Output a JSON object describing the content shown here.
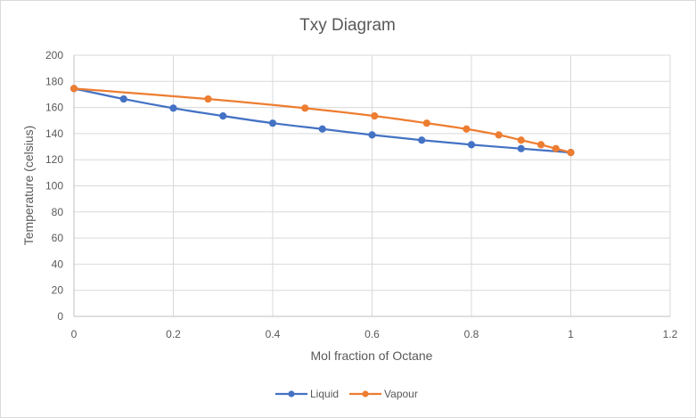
{
  "chart_data": {
    "type": "scatter",
    "title": "Txy Diagram",
    "xlabel": "Mol fraction of Octane",
    "ylabel": "Temperature (celsius)",
    "xlim": [
      0,
      1.2
    ],
    "ylim": [
      0,
      200
    ],
    "xticks": [
      0,
      0.2,
      0.4,
      0.6,
      0.8,
      1,
      1.2
    ],
    "yticks": [
      0,
      20,
      40,
      60,
      80,
      100,
      120,
      140,
      160,
      180,
      200
    ],
    "xtick_labels": [
      "0",
      "0.2",
      "0.4",
      "0.6",
      "0.8",
      "1",
      "1.2"
    ],
    "ytick_labels": [
      "0",
      "20",
      "40",
      "60",
      "80",
      "100",
      "120",
      "140",
      "160",
      "180",
      "200"
    ],
    "grid": true,
    "legend_position": "bottom",
    "series": [
      {
        "name": "Liquid",
        "color": "#4472c4",
        "x": [
          0,
          0.1,
          0.2,
          0.3,
          0.4,
          0.5,
          0.6,
          0.7,
          0.8,
          0.9,
          1.0
        ],
        "y": [
          174.5,
          166.5,
          159.5,
          153.5,
          148,
          143.5,
          139,
          135,
          131.5,
          128.5,
          125.5
        ]
      },
      {
        "name": "Vapour",
        "color": "#ed7d31",
        "x": [
          0,
          0.27,
          0.465,
          0.605,
          0.71,
          0.79,
          0.855,
          0.9,
          0.94,
          0.97,
          1.0
        ],
        "y": [
          174.5,
          166.5,
          159.5,
          153.5,
          148,
          143.5,
          139,
          135,
          131.5,
          128.5,
          125.5
        ]
      }
    ]
  }
}
